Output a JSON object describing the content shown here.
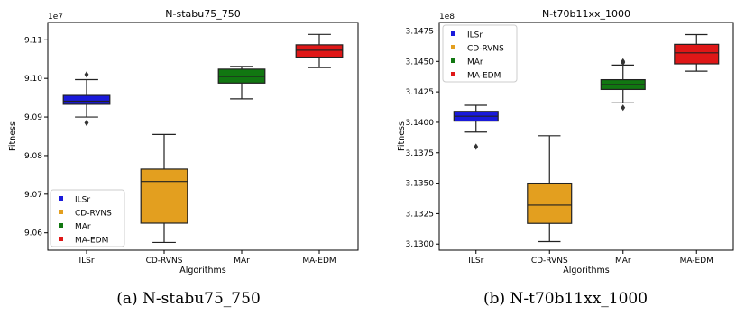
{
  "chart_data": [
    {
      "type": "box",
      "title": "N-stabu75_750",
      "xlabel": "Algorithms",
      "ylabel": "Fitness",
      "y_multiplier_label": "1e7",
      "ylim": [
        9.0555,
        9.1145
      ],
      "yticks": [
        9.06,
        9.07,
        9.08,
        9.09,
        9.1,
        9.11
      ],
      "ytick_labels": [
        "9.06",
        "9.07",
        "9.08",
        "9.09",
        "9.10",
        "9.11"
      ],
      "grid": false,
      "legend_position": "lower-left",
      "categories": [
        "ILSr",
        "CD-RVNS",
        "MAr",
        "MA-EDM"
      ],
      "series": [
        {
          "name": "ILSr",
          "color": "#1a1adb",
          "whisker_low": 9.09,
          "q1": 9.0933,
          "median": 9.0941,
          "q3": 9.0956,
          "whisker_high": 9.0997,
          "outliers": [
            9.101,
            9.0885
          ]
        },
        {
          "name": "CD-RVNS",
          "color": "#e39f1f",
          "whisker_low": 9.0575,
          "q1": 9.0625,
          "median": 9.0733,
          "q3": 9.0765,
          "whisker_high": 9.0855,
          "outliers": []
        },
        {
          "name": "MAr",
          "color": "#117711",
          "whisker_low": 9.0947,
          "q1": 9.0988,
          "median": 9.1005,
          "q3": 9.1024,
          "whisker_high": 9.1031,
          "outliers": []
        },
        {
          "name": "MA-EDM",
          "color": "#df1717",
          "whisker_low": 9.1028,
          "q1": 9.1055,
          "median": 9.1073,
          "q3": 9.1087,
          "whisker_high": 9.1114,
          "outliers": []
        }
      ]
    },
    {
      "type": "box",
      "title": "N-t70b11xx_1000",
      "xlabel": "Algorithms",
      "ylabel": "Fitness",
      "y_multiplier_label": "1e8",
      "ylim": [
        3.1295,
        3.1482
      ],
      "yticks": [
        3.13,
        3.1325,
        3.135,
        3.1375,
        3.14,
        3.1425,
        3.145,
        3.1475
      ],
      "ytick_labels": [
        "3.1300",
        "3.1325",
        "3.1350",
        "3.1375",
        "3.1400",
        "3.1425",
        "3.1450",
        "3.1475"
      ],
      "grid": false,
      "legend_position": "upper-left",
      "categories": [
        "ILSr",
        "CD-RVNS",
        "MAr",
        "MA-EDM"
      ],
      "series": [
        {
          "name": "ILSr",
          "color": "#1a1adb",
          "whisker_low": 3.1392,
          "q1": 3.1401,
          "median": 3.1405,
          "q3": 3.1409,
          "whisker_high": 3.1414,
          "outliers": [
            3.138
          ]
        },
        {
          "name": "CD-RVNS",
          "color": "#e39f1f",
          "whisker_low": 3.1302,
          "q1": 3.1317,
          "median": 3.1332,
          "q3": 3.135,
          "whisker_high": 3.1389,
          "outliers": []
        },
        {
          "name": "MAr",
          "color": "#117711",
          "whisker_low": 3.1416,
          "q1": 3.1427,
          "median": 3.1431,
          "q3": 3.1435,
          "whisker_high": 3.1447,
          "outliers": [
            3.145,
            3.1449,
            3.1412
          ]
        },
        {
          "name": "MA-EDM",
          "color": "#df1717",
          "whisker_low": 3.1442,
          "q1": 3.1448,
          "median": 3.1457,
          "q3": 3.1464,
          "whisker_high": 3.1472,
          "outliers": []
        }
      ]
    }
  ],
  "captions": [
    "(a) N-stabu75_750",
    "(b) N-t70b11xx_1000"
  ]
}
